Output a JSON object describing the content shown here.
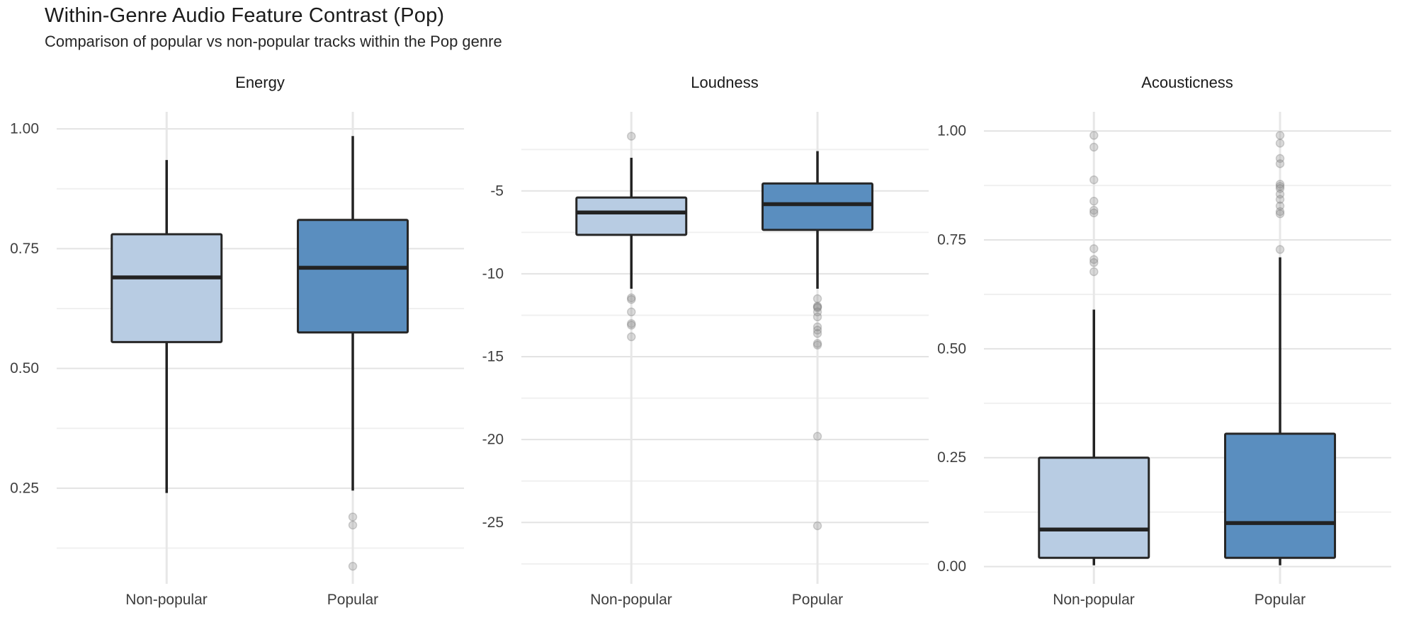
{
  "figure": {
    "title": "Within-Genre Audio Feature Contrast (Pop)",
    "subtitle": "Comparison of popular vs non-popular tracks within the Pop genre"
  },
  "colors": {
    "non_popular_fill": "#b8cce3",
    "popular_fill": "#5a8ebf",
    "box_border": "#262626",
    "median_line": "#222222",
    "whisker": "#222222",
    "grid_major": "#e3e3e3",
    "grid_minor": "#f0f0f0",
    "grid_vertical": "#e7e7e7",
    "outlier_fill": "#8c8c8c",
    "outlier_stroke": "#6f6f6f",
    "axis_text": "#3f3f3f",
    "title_text": "#1b1b1b"
  },
  "chart_data": [
    {
      "type": "box",
      "title": "Energy",
      "categories": [
        "Non-popular",
        "Popular"
      ],
      "ylim": [
        0.04,
        1.04
      ],
      "grid": true,
      "legend": "none",
      "yticks": [
        {
          "v": 1.0,
          "label": "1.00"
        },
        {
          "v": 0.75,
          "label": "0.75"
        },
        {
          "v": 0.5,
          "label": "0.50"
        },
        {
          "v": 0.25,
          "label": "0.25"
        }
      ],
      "minor_ticks": [
        0.875,
        0.625,
        0.375,
        0.125
      ],
      "series": [
        {
          "category": "Non-popular",
          "whisker_low": 0.24,
          "q1": 0.555,
          "median": 0.69,
          "q3": 0.78,
          "whisker_high": 0.935,
          "outliers": []
        },
        {
          "category": "Popular",
          "whisker_low": 0.245,
          "q1": 0.575,
          "median": 0.71,
          "q3": 0.81,
          "whisker_high": 0.985,
          "outliers": [
            0.19,
            0.173,
            0.087
          ]
        }
      ]
    },
    {
      "type": "box",
      "title": "Loudness",
      "categories": [
        "Non-popular",
        "Popular"
      ],
      "ylim": [
        -29.0,
        -0.1
      ],
      "grid": true,
      "legend": "none",
      "yticks": [
        {
          "v": -5,
          "label": "-5"
        },
        {
          "v": -10,
          "label": "-10"
        },
        {
          "v": -15,
          "label": "-15"
        },
        {
          "v": -20,
          "label": "-20"
        },
        {
          "v": -25,
          "label": "-25"
        }
      ],
      "minor_ticks": [
        -2.5,
        -7.5,
        -12.5,
        -17.5,
        -22.5,
        -27.5
      ],
      "series": [
        {
          "category": "Non-popular",
          "whisker_low": -10.9,
          "q1": -7.65,
          "median": -6.3,
          "q3": -5.4,
          "whisker_high": -3.0,
          "outliers": [
            -1.7,
            -11.45,
            -11.55,
            -12.3,
            -13.0,
            -13.1,
            -13.8
          ]
        },
        {
          "category": "Popular",
          "whisker_low": -10.9,
          "q1": -7.35,
          "median": -5.8,
          "q3": -4.55,
          "whisker_high": -2.6,
          "outliers": [
            -11.5,
            -11.95,
            -12.0,
            -12.05,
            -12.3,
            -12.6,
            -13.2,
            -13.4,
            -13.6,
            -14.2,
            -14.3,
            -19.8,
            -25.2
          ]
        }
      ]
    },
    {
      "type": "box",
      "title": "Acousticness",
      "categories": [
        "Non-popular",
        "Popular"
      ],
      "ylim": [
        -0.051,
        1.049
      ],
      "grid": true,
      "legend": "none",
      "yticks": [
        {
          "v": 1.0,
          "label": "1.00"
        },
        {
          "v": 0.75,
          "label": "0.75"
        },
        {
          "v": 0.5,
          "label": "0.50"
        },
        {
          "v": 0.25,
          "label": "0.25"
        },
        {
          "v": 0.0,
          "label": "0.00"
        }
      ],
      "minor_ticks": [
        0.875,
        0.625,
        0.375,
        0.125
      ],
      "series": [
        {
          "category": "Non-popular",
          "whisker_low": 0.003,
          "q1": 0.02,
          "median": 0.085,
          "q3": 0.25,
          "whisker_high": 0.59,
          "outliers": [
            0.99,
            0.963,
            0.888,
            0.839,
            0.818,
            0.812,
            0.73,
            0.705,
            0.698,
            0.677
          ]
        },
        {
          "category": "Popular",
          "whisker_low": 0.003,
          "q1": 0.02,
          "median": 0.1,
          "q3": 0.305,
          "whisker_high": 0.71,
          "outliers": [
            0.99,
            0.972,
            0.937,
            0.925,
            0.878,
            0.873,
            0.868,
            0.855,
            0.843,
            0.828,
            0.815,
            0.81,
            0.728
          ]
        }
      ]
    }
  ]
}
